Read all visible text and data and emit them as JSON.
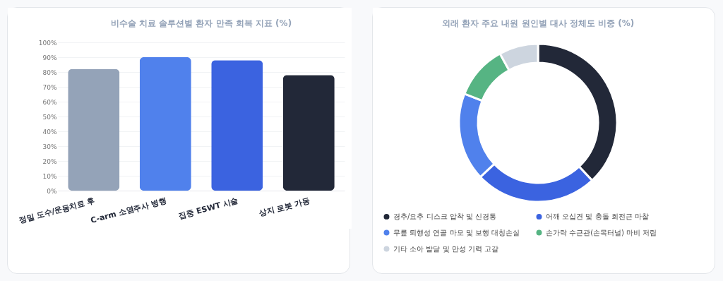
{
  "chart_data": [
    {
      "type": "bar",
      "title": "비수술 치료 솔루션별 환자 만족 회복 지표 (%)",
      "categories": [
        "정밀 도수/운동치료 후",
        "C-arm 소염주사 병행",
        "집중 ESWT 시술",
        "상지 로봇 가동"
      ],
      "values": [
        82,
        90,
        88,
        78
      ],
      "colors": [
        "#94a3b8",
        "#5081ec",
        "#3b63e0",
        "#222838"
      ],
      "ylim": [
        0,
        100
      ],
      "yticks": [
        {
          "value": 0,
          "label": "0%"
        },
        {
          "value": 10,
          "label": "10%"
        },
        {
          "value": 20,
          "label": "20%"
        },
        {
          "value": 30,
          "label": "30%"
        },
        {
          "value": 40,
          "label": "40%"
        },
        {
          "value": 50,
          "label": "50%"
        },
        {
          "value": 60,
          "label": "60%"
        },
        {
          "value": 70,
          "label": "70%"
        },
        {
          "value": 80,
          "label": "80%"
        },
        {
          "value": 90,
          "label": "90%"
        },
        {
          "value": 100,
          "label": "100%"
        }
      ],
      "grid": "y",
      "legend": false
    },
    {
      "type": "donut",
      "title": "외래 환자 주요 내원 원인별 대사 정체도 비중 (%)",
      "categories": [
        "경추/요추 디스크 압착 및 신경통",
        "어깨 오십견 및 충돌 회전근 마찰",
        "무릎 퇴행성 연골 마모 및 보행 대칭손실",
        "손가락 수근관(손목터널) 마비 저림",
        "기타 소아 발달 및 만성 기력 고갈"
      ],
      "values": [
        38,
        25,
        18,
        11,
        8
      ],
      "colors": [
        "#222838",
        "#3b63e0",
        "#5081ec",
        "#56b483",
        "#cdd5df"
      ],
      "legend": "bottom"
    }
  ]
}
